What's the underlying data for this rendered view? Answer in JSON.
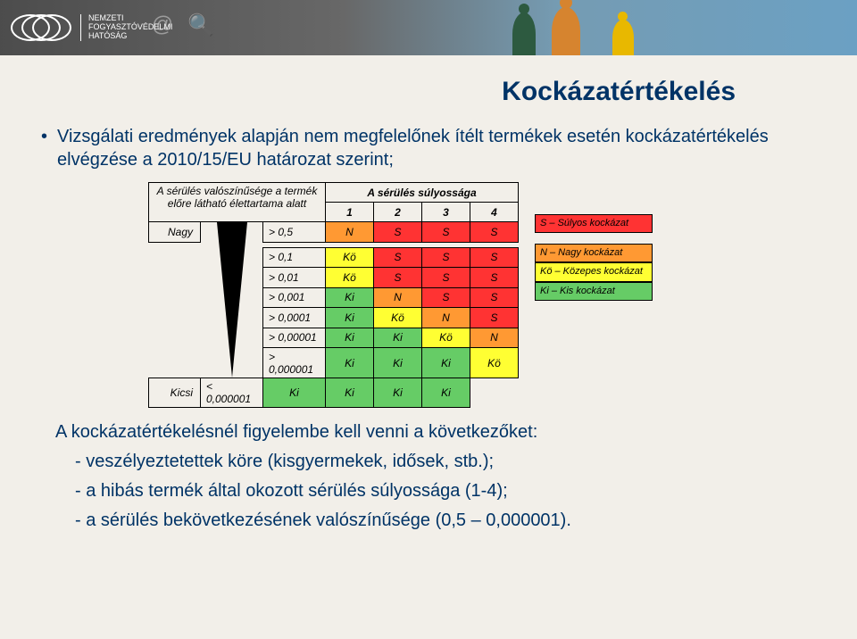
{
  "header": {
    "logo_line1": "NEMZETI",
    "logo_line2": "FOGYASZTÓVÉDELMI",
    "logo_line3": "HATÓSÁG"
  },
  "title": "Kockázatértékelés",
  "intro": "Vizsgálati eredmények alapján nem megfelelőnek ítélt termékek esetén kockázatértékelés elvégzése a 2010/15/EU határozat szerint;",
  "tableHeaders": {
    "prob": "A sérülés valószínűsége a termék előre látható élettartama alatt",
    "severity": "A sérülés súlyossága",
    "cols": [
      "1",
      "2",
      "3",
      "4"
    ]
  },
  "rowLabels": {
    "big": "Nagy",
    "small": "Kicsi"
  },
  "rows": [
    {
      "p": "> 0,5",
      "c": [
        "N",
        "S",
        "S",
        "S"
      ]
    },
    {
      "p": "> 0,1",
      "c": [
        "Kö",
        "S",
        "S",
        "S"
      ]
    },
    {
      "p": "> 0,01",
      "c": [
        "Kö",
        "S",
        "S",
        "S"
      ]
    },
    {
      "p": "> 0,001",
      "c": [
        "Ki",
        "N",
        "S",
        "S"
      ]
    },
    {
      "p": "> 0,0001",
      "c": [
        "Ki",
        "Kö",
        "N",
        "S"
      ]
    },
    {
      "p": "> 0,00001",
      "c": [
        "Ki",
        "Ki",
        "Kö",
        "N"
      ]
    },
    {
      "p": "> 0,000001",
      "c": [
        "Ki",
        "Ki",
        "Ki",
        "Kö"
      ]
    },
    {
      "p": "< 0,000001",
      "c": [
        "Ki",
        "Ki",
        "Ki",
        "Ki"
      ]
    }
  ],
  "colors": {
    "S": "#ff3333",
    "N": "#ff9933",
    "Kö": "#ffff33",
    "Ki": "#66cc66"
  },
  "legend": [
    {
      "code": "S",
      "label": "S – Súlyos kockázat"
    },
    {
      "code": "N",
      "label": "N – Nagy kockázat"
    },
    {
      "code": "Kö",
      "label": "Kö – Közepes kockázat"
    },
    {
      "code": "Ki",
      "label": "Ki – Kis kockázat"
    }
  ],
  "followLine": "A kockázatértékelésnél figyelembe kell venni a következőket:",
  "subs": [
    "- veszélyeztetettek köre (kisgyermekek, idősek, stb.);",
    "- a hibás termék által okozott sérülés súlyossága (1-4);",
    "- a sérülés bekövetkezésének valószínűsége (0,5 – 0,000001)."
  ]
}
